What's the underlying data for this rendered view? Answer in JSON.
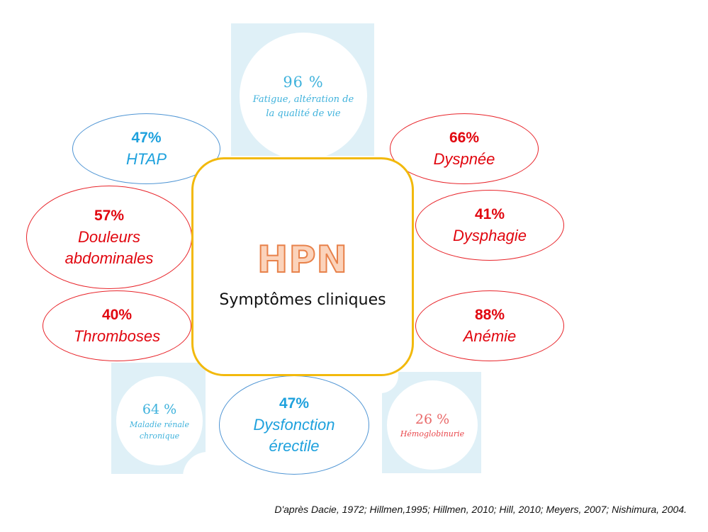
{
  "center": {
    "title": "HPN",
    "subtitle": "Symptômes cliniques"
  },
  "symptoms": {
    "htap": {
      "percent": "47%",
      "label": "HTAP"
    },
    "douleurs": {
      "percent": "57%",
      "label_line1": "Douleurs",
      "label_line2": "abdominales"
    },
    "thromboses": {
      "percent": "40%",
      "label": "Thromboses"
    },
    "dyspnee": {
      "percent": "66%",
      "label": "Dyspnée"
    },
    "dysphagie": {
      "percent": "41%",
      "label": "Dysphagie"
    },
    "anemie": {
      "percent": "88%",
      "label": "Anémie"
    },
    "dysfonction": {
      "percent": "47%",
      "label_line1": "Dysfonction",
      "label_line2": "érectile"
    },
    "fatigue": {
      "percent": "96 %",
      "label_line1": "Fatigue, altération de",
      "label_line2": "la qualité de vie"
    },
    "renale": {
      "percent": "64 %",
      "label_line1": "Maladie rénale",
      "label_line2": "chronique"
    },
    "hemoglobinurie": {
      "percent": "26 %",
      "label": "Hémoglobinurie"
    }
  },
  "footer": {
    "reference": "D'après Dacie, 1972;  Hillmen,1995; Hillmen, 2010; Hill, 2010; Meyers, 2007; Nishimura, 2004."
  },
  "colors": {
    "blue": "#1ea1dd",
    "red": "#e1060f",
    "panel": "#dff0f7",
    "center_border": "#f2b90c",
    "hpn_fill": "#fbd3bb",
    "hpn_stroke": "#e8824b"
  }
}
